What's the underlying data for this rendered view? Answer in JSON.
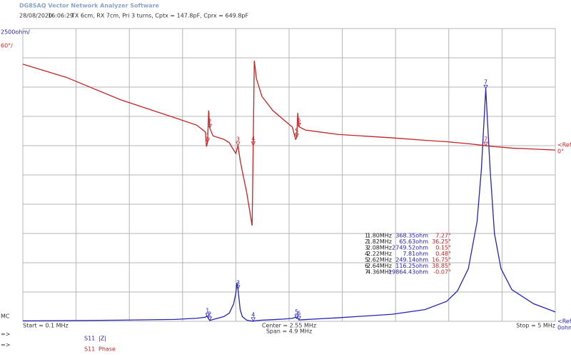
{
  "header": {
    "app_title": "DG8SAQ Vector Network Analyzer Software",
    "date": "28/08/2020",
    "time": "16:06:29",
    "description": "TX 6cm, RX 7cm, Pri 3 turns, Cptx = 147.8pF, Cprx = 649.8pF"
  },
  "chart_data": {
    "type": "line",
    "x": [
      0.1,
      0.5,
      1.0,
      1.5,
      1.7,
      1.78,
      1.79,
      1.8,
      1.81,
      1.82,
      1.85,
      1.95,
      2.0,
      2.04,
      2.06,
      2.07,
      2.08,
      2.1,
      2.12,
      2.16,
      2.2,
      2.21,
      2.22,
      2.23,
      2.25,
      2.3,
      2.4,
      2.5,
      2.58,
      2.61,
      2.62,
      2.63,
      2.64,
      2.7,
      2.8,
      3.0,
      3.5,
      3.8,
      4.0,
      4.1,
      4.2,
      4.28,
      4.32,
      4.36,
      4.4,
      4.44,
      4.5,
      4.6,
      4.8,
      5.0
    ],
    "series": [
      {
        "parameter": "S11",
        "name": "|Z|",
        "color": "#2424b8",
        "axis": "y",
        "values": [
          40,
          60,
          100,
          160,
          260,
          350,
          450,
          368.35,
          200,
          65.63,
          150,
          400,
          700,
          1500,
          2400,
          3300,
          2749.52,
          1000,
          400,
          100,
          30,
          20,
          7.81,
          30,
          60,
          100,
          140,
          190,
          250,
          350,
          249.14,
          300,
          116.25,
          150,
          200,
          300,
          600,
          1000,
          1700,
          2600,
          4500,
          8500,
          13000,
          19864.43,
          13000,
          7500,
          4500,
          2700,
          1500,
          800
        ]
      },
      {
        "parameter": "S11",
        "name": "Phase",
        "color": "#c42424",
        "axis": "y2",
        "values": [
          167,
          140,
          94,
          57,
          42,
          28,
          -2,
          7.27,
          72,
          36.25,
          20,
          13,
          6,
          -9,
          -16,
          -8,
          0.15,
          -30,
          -53,
          -96,
          -150,
          -164,
          0.48,
          174,
          137,
          101,
          72,
          53,
          38,
          13,
          16.75,
          67,
          38.85,
          32,
          29,
          23,
          16,
          11,
          8,
          6,
          4,
          2,
          1,
          -0.07,
          -1,
          -2,
          -3,
          -5,
          -7,
          -9
        ]
      }
    ],
    "xlim": [
      0.1,
      5
    ],
    "xticks": [
      0.1,
      0.59,
      1.08,
      1.57,
      2.06,
      2.55,
      3.04,
      3.53,
      4.02,
      4.51,
      5
    ],
    "ylim": [
      0,
      25000
    ],
    "yticks": [
      0,
      2500,
      5000,
      7500,
      10000,
      12500,
      15000,
      17500,
      20000,
      22500,
      25000
    ],
    "y2lim": [
      -360,
      240
    ],
    "grid": true,
    "scale_labels": {
      "y": "2500ohm/",
      "y2": "60°/",
      "corner": "MC"
    },
    "ref_labels": {
      "ref2": "<Ref2",
      "ref2_value": "0°",
      "ref1": "<Ref1",
      "ref1_value": "0ohm"
    },
    "sweep": {
      "start": "Start = 0.1 MHz",
      "center": "Center = 2.55 MHz",
      "span": "Span = 4.9 MHz",
      "stop": "Stop = 5 MHz"
    },
    "legend_prefix": "=>",
    "markers": [
      {
        "plot_label": "1",
        "row": [
          "1:",
          "1.80MHz",
          "368.35ohm",
          "7.27°"
        ]
      },
      {
        "plot_label": "2",
        "row": [
          "2:",
          "1.82MHz",
          "65.63ohm",
          "36.25°"
        ]
      },
      {
        "plot_label": "3",
        "row": [
          "3:",
          "2.08MHz",
          "2749.52ohm",
          "0.15°"
        ]
      },
      {
        "plot_label": "4",
        "row": [
          "4:",
          "2.22MHz",
          "7.81ohm",
          "0.48°"
        ]
      },
      {
        "plot_label": "5",
        "row": [
          "5:",
          "2.62MHz",
          "249.14ohm",
          "16.75°"
        ]
      },
      {
        "plot_label": "6",
        "row": [
          "6:",
          "2.64MHz",
          "116.25ohm",
          "38.85°"
        ]
      },
      {
        "plot_label": "7",
        "row": [
          "7:",
          "4.36MHz",
          "19864.43ohm",
          "-0.07°"
        ]
      }
    ]
  }
}
